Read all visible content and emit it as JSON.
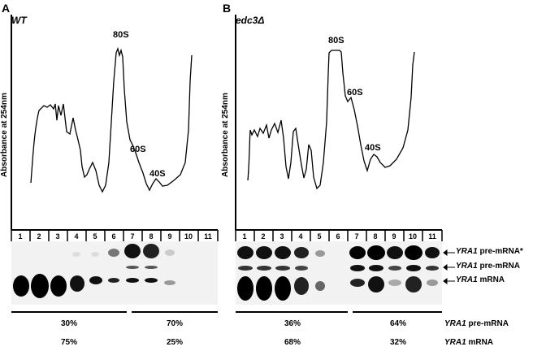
{
  "panels": [
    {
      "letter": "A",
      "strain": "WT",
      "ylabel": "Absorbance at 254nm",
      "peaks": {
        "p80s": "80S",
        "p60s": "60S",
        "p40s": "40S"
      },
      "percent_pre": [
        "30%",
        "70%"
      ],
      "percent_mrna": [
        "75%",
        "25%"
      ]
    },
    {
      "letter": "B",
      "strain": "edc3Δ",
      "ylabel": "Absorbance at 254nm",
      "peaks": {
        "p80s": "80S",
        "p60s": "60S",
        "p40s": "40S"
      },
      "percent_pre": [
        "36%",
        "64%"
      ],
      "percent_mrna": [
        "68%",
        "32%"
      ]
    }
  ],
  "lanes": [
    "1",
    "2",
    "3",
    "4",
    "5",
    "6",
    "7",
    "8",
    "9",
    "10",
    "11"
  ],
  "blot_labels": {
    "pre_star": {
      "gene": "YRA1",
      "suffix": " pre-mRNA*"
    },
    "pre": {
      "gene": "YRA1",
      "suffix": " pre-mRNA"
    },
    "mrna": {
      "gene": "YRA1",
      "suffix": " mRNA"
    }
  },
  "row_labels": {
    "pre": {
      "gene": "YRA1",
      "suffix": " pre-mRNA"
    },
    "mrna": {
      "gene": "YRA1",
      "suffix": " mRNA"
    }
  }
}
